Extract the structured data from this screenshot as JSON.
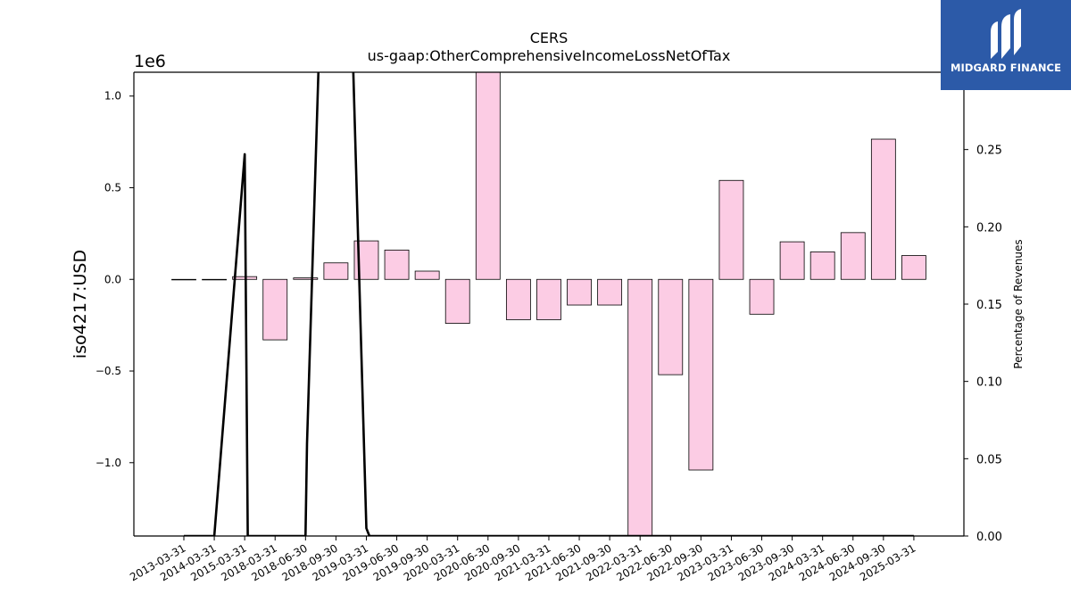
{
  "chart_data": {
    "type": "bar",
    "title": "CERS",
    "subtitle": "us-gaap:OtherComprehensiveIncomeLossNetOfTax",
    "ylabel": "iso4217:USD",
    "y_offset_label": "1e6",
    "y2label": "Percentage of Revenues",
    "categories": [
      "2013-03-31",
      "2014-03-31",
      "2015-03-31",
      "2018-03-31",
      "2018-06-30",
      "2018-09-30",
      "2019-03-31",
      "2019-06-30",
      "2019-09-30",
      "2020-03-31",
      "2020-06-30",
      "2020-09-30",
      "2021-03-31",
      "2021-06-30",
      "2021-09-30",
      "2022-03-31",
      "2022-06-30",
      "2022-09-30",
      "2023-03-31",
      "2023-06-30",
      "2023-09-30",
      "2024-03-31",
      "2024-06-30",
      "2024-09-30",
      "2025-03-31"
    ],
    "values": [
      0,
      0,
      15000,
      -330000,
      8000,
      90000,
      210000,
      160000,
      45000,
      -240000,
      1200000,
      -220000,
      -220000,
      -140000,
      -140000,
      -1450000,
      -520000,
      -1040000,
      540000,
      -190000,
      205000,
      150000,
      255000,
      765000,
      130000
    ],
    "ylim": [
      -1400000,
      1130000
    ],
    "yticks": [
      -1000000,
      -500000,
      0,
      500000,
      1000000
    ],
    "ytick_labels": [
      "−1.0",
      "−0.5",
      "0.0",
      "0.5",
      "1.0"
    ],
    "line_series": {
      "x": [
        0,
        1,
        2,
        2.1,
        4,
        4.05,
        4.5,
        5.5,
        6,
        6.1,
        7,
        24
      ],
      "values": [
        0,
        0,
        0.247,
        0,
        0,
        0.06,
        0.35,
        0.35,
        0.005,
        0,
        0,
        0
      ]
    },
    "y2lim": [
      0,
      0.3
    ],
    "y2ticks": [
      0,
      0.05,
      0.1,
      0.15,
      0.2,
      0.25
    ],
    "y2tick_labels": [
      "0.00",
      "0.05",
      "0.10",
      "0.15",
      "0.20",
      "0.25"
    ],
    "bar_color": "#fccce4",
    "bar_edge": "#000000",
    "line_color": "#000000"
  },
  "logo": {
    "text": "MIDGARD FINANCE",
    "bg": "#2c5aa8"
  }
}
